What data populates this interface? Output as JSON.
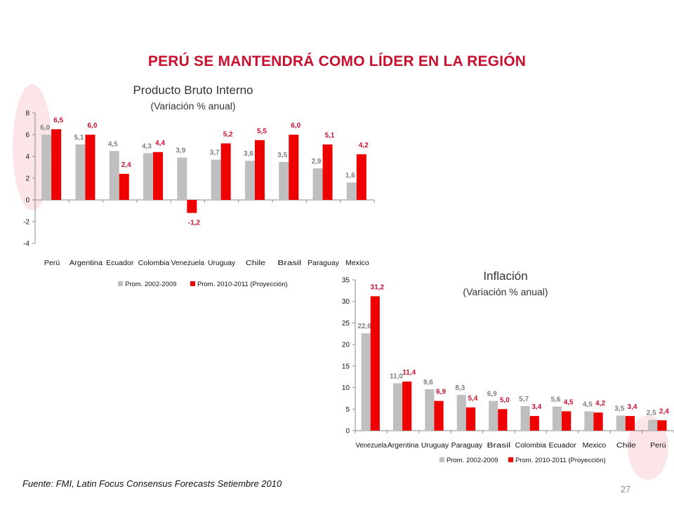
{
  "page": {
    "title": "PERÚ SE MANTENDRÁ COMO LÍDER EN LA REGIÓN",
    "source": "Fuente: FMI, Latin Focus Consensus Forecasts Setiembre 2010",
    "page_number": "27"
  },
  "colors": {
    "accent": "#c8102e",
    "series_gray": "#bfbfbf",
    "series_red": "#ee0000",
    "highlight": "#f4b6bd"
  },
  "chart_data": [
    {
      "id": "pbi",
      "type": "bar",
      "title": "Producto Bruto Interno",
      "subtitle": "(Variación % anual)",
      "categories": [
        "Perú",
        "Argentina",
        "Ecuador",
        "Colombia",
        "Venezuela",
        "Uruguay",
        "Chile",
        "Brasil",
        "Paraguay",
        "Mexico"
      ],
      "series": [
        {
          "name": "Prom. 2002-2009",
          "values": [
            6.0,
            5.1,
            4.5,
            4.3,
            3.9,
            3.7,
            3.6,
            3.5,
            2.9,
            1.6
          ],
          "labels": [
            "6,0",
            "5,1",
            "4,5",
            "4,3",
            "3,9",
            "3,7",
            "3,6",
            "3,5",
            "2,9",
            "1,6"
          ]
        },
        {
          "name": "Prom. 2010-2011 (Proyección)",
          "values": [
            6.5,
            6.0,
            2.4,
            4.4,
            -1.2,
            5.2,
            5.5,
            6.0,
            5.1,
            4.2
          ],
          "labels": [
            "6,5",
            "6,0",
            "2,4",
            "4,4",
            "-1,2",
            "5,2",
            "5,5",
            "6,0",
            "5,1",
            "4,2"
          ]
        }
      ],
      "ylim": [
        -4,
        8
      ],
      "yticks": [
        "-4",
        "-2",
        "0",
        "2",
        "4",
        "6",
        "8"
      ],
      "legend_position": "bottom",
      "grid": false
    },
    {
      "id": "inflacion",
      "type": "bar",
      "title": "Inflación",
      "subtitle": "(Variación % anual)",
      "categories": [
        "Venezuela",
        "Argentina",
        "Uruguay",
        "Paraguay",
        "Brasil",
        "Colombia",
        "Ecuador",
        "Mexico",
        "Chile",
        "Perú"
      ],
      "series": [
        {
          "name": "Prom. 2002-2009",
          "values": [
            22.6,
            11.0,
            9.6,
            8.3,
            6.9,
            5.7,
            5.6,
            4.5,
            3.5,
            2.5
          ],
          "labels": [
            "22,6",
            "11,0",
            "9,6",
            "8,3",
            "6,9",
            "5,7",
            "5,6",
            "4,5",
            "3,5",
            "2,5"
          ]
        },
        {
          "name": "Prom. 2010-2011 (Proyección)",
          "values": [
            31.2,
            11.4,
            6.9,
            5.4,
            5.0,
            3.4,
            4.5,
            4.2,
            3.4,
            2.4
          ],
          "labels": [
            "31,2",
            "11,4",
            "6,9",
            "5,4",
            "5,0",
            "3,4",
            "4,5",
            "4,2",
            "3,4",
            "2,4"
          ]
        }
      ],
      "ylim": [
        0,
        35
      ],
      "yticks": [
        "0",
        "5",
        "10",
        "15",
        "20",
        "25",
        "30",
        "35"
      ],
      "legend_position": "bottom",
      "grid": false
    }
  ]
}
